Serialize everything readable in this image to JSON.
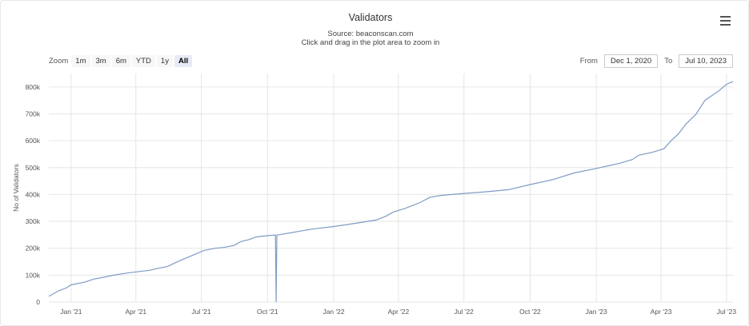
{
  "header": {
    "title": "Validators",
    "subtitle": "Source: beaconscan.com",
    "instructions": "Click and drag in the plot area to zoom in"
  },
  "zoom": {
    "label": "Zoom",
    "buttons": [
      "1m",
      "3m",
      "6m",
      "YTD",
      "1y",
      "All"
    ],
    "selected": "All"
  },
  "range": {
    "from_label": "From",
    "from_value": "Dec 1, 2020",
    "to_label": "To",
    "to_value": "Jul 10, 2023"
  },
  "menu_icon": "hamburger-menu-icon",
  "chart_data": {
    "type": "line",
    "ylabel": "No of Validators",
    "xlabel": "",
    "ylim": [
      0,
      850000
    ],
    "y_ticks": [
      "0",
      "100k",
      "200k",
      "300k",
      "400k",
      "500k",
      "600k",
      "700k",
      "800k"
    ],
    "x_ticks": [
      "Jan '21",
      "Apr '21",
      "Jul '21",
      "Oct '21",
      "Jan '22",
      "Apr '22",
      "Jul '22",
      "Oct '22",
      "Jan '23",
      "Apr '23",
      "Jul '23"
    ],
    "line_color": "#7f9bc3",
    "grid": true,
    "series": [
      {
        "points": [
          [
            "2020-12-01",
            21000
          ],
          [
            "2020-12-15",
            42000
          ],
          [
            "2020-12-25",
            52000
          ],
          [
            "2021-01-01",
            64000
          ],
          [
            "2021-01-20",
            74000
          ],
          [
            "2021-02-01",
            85000
          ],
          [
            "2021-02-15",
            92000
          ],
          [
            "2021-03-01",
            100000
          ],
          [
            "2021-03-20",
            108000
          ],
          [
            "2021-04-01",
            112000
          ],
          [
            "2021-04-20",
            118000
          ],
          [
            "2021-05-01",
            125000
          ],
          [
            "2021-05-15",
            132000
          ],
          [
            "2021-05-25",
            145000
          ],
          [
            "2021-06-05",
            158000
          ],
          [
            "2021-06-20",
            175000
          ],
          [
            "2021-07-05",
            192000
          ],
          [
            "2021-07-20",
            200000
          ],
          [
            "2021-08-01",
            203000
          ],
          [
            "2021-08-15",
            210000
          ],
          [
            "2021-08-25",
            225000
          ],
          [
            "2021-09-05",
            232000
          ],
          [
            "2021-09-15",
            242000
          ],
          [
            "2021-10-01",
            247000
          ],
          [
            "2021-10-12",
            249000
          ],
          [
            "2021-10-13",
            0
          ],
          [
            "2021-10-14",
            249000
          ],
          [
            "2021-11-01",
            257000
          ],
          [
            "2021-12-01",
            271000
          ],
          [
            "2022-01-01",
            281000
          ],
          [
            "2022-02-01",
            293000
          ],
          [
            "2022-03-01",
            305000
          ],
          [
            "2022-03-15",
            320000
          ],
          [
            "2022-03-25",
            335000
          ],
          [
            "2022-04-10",
            348000
          ],
          [
            "2022-05-01",
            370000
          ],
          [
            "2022-05-15",
            390000
          ],
          [
            "2022-06-01",
            397000
          ],
          [
            "2022-07-01",
            404000
          ],
          [
            "2022-08-01",
            410000
          ],
          [
            "2022-09-01",
            418000
          ],
          [
            "2022-10-01",
            437000
          ],
          [
            "2022-11-01",
            455000
          ],
          [
            "2022-12-01",
            480000
          ],
          [
            "2023-01-01",
            497000
          ],
          [
            "2023-02-01",
            515000
          ],
          [
            "2023-02-20",
            530000
          ],
          [
            "2023-03-01",
            546000
          ],
          [
            "2023-03-20",
            557000
          ],
          [
            "2023-04-05",
            570000
          ],
          [
            "2023-04-15",
            600000
          ],
          [
            "2023-04-25",
            625000
          ],
          [
            "2023-05-05",
            660000
          ],
          [
            "2023-05-20",
            700000
          ],
          [
            "2023-06-01",
            750000
          ],
          [
            "2023-06-20",
            785000
          ],
          [
            "2023-07-01",
            810000
          ],
          [
            "2023-07-10",
            820000
          ]
        ]
      }
    ]
  }
}
